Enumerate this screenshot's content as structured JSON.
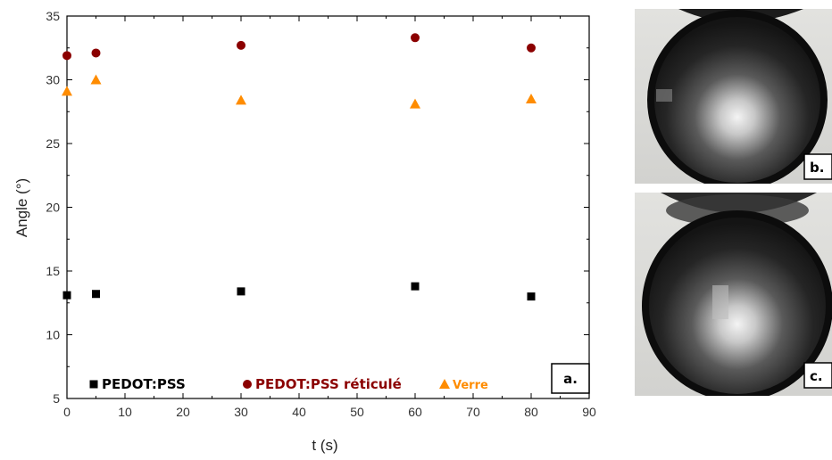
{
  "chart_data": {
    "type": "scatter",
    "xlabel": "t (s)",
    "ylabel": "Angle (°)",
    "xlim": [
      0,
      90
    ],
    "ylim": [
      5,
      35
    ],
    "xticks": [
      "0",
      "10",
      "20",
      "30",
      "40",
      "50",
      "60",
      "70",
      "80",
      "90"
    ],
    "yticks": [
      "5",
      "10",
      "15",
      "20",
      "25",
      "30",
      "35"
    ],
    "grid": false,
    "legend_position": "bottom",
    "series": [
      {
        "name": "PEDOT:PSS",
        "marker": "square",
        "color": "#000000",
        "x": [
          0,
          5,
          30,
          60,
          80
        ],
        "y": [
          13.1,
          13.2,
          13.4,
          13.8,
          13.0
        ]
      },
      {
        "name": "PEDOT:PSS réticulé",
        "marker": "circle",
        "color": "#8b0000",
        "x": [
          0,
          5,
          30,
          60,
          80
        ],
        "y": [
          31.9,
          32.1,
          32.7,
          33.3,
          32.5
        ]
      },
      {
        "name": "Verre",
        "marker": "triangle",
        "color": "#ff8c00",
        "x": [
          0,
          5,
          30,
          60,
          80
        ],
        "y": [
          29.1,
          30.0,
          28.4,
          28.1,
          28.5
        ]
      }
    ],
    "panel_label": "a."
  },
  "photos": [
    {
      "label": "b."
    },
    {
      "label": "c."
    }
  ]
}
